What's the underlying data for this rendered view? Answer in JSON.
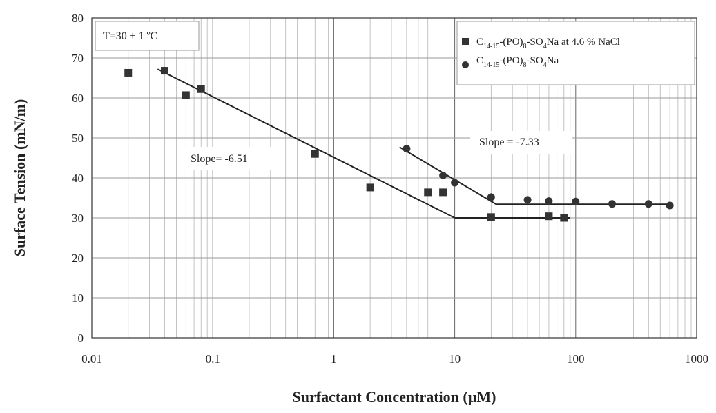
{
  "chart_data": {
    "type": "scatter",
    "x_scale": "log",
    "xlim": [
      0.01,
      1000
    ],
    "ylim": [
      0,
      80
    ],
    "grid": true,
    "xlabel": "Surfactant Concentration (µM)",
    "ylabel": "Surface Tension (mN/m)",
    "x_ticks": [
      "0.01",
      "0.1",
      "1",
      "10",
      "100",
      "1000"
    ],
    "y_ticks": [
      "0",
      "10",
      "20",
      "30",
      "40",
      "50",
      "60",
      "70",
      "80"
    ],
    "legend_position": "top-right",
    "annotations": {
      "temperature": "T=30 ± 1 ºC",
      "slope_left": "Slope= -6.51",
      "slope_right": "Slope = -7.33"
    },
    "series": [
      {
        "legend": {
          "base": "C",
          "sub1": "14-15",
          "mid": "-(PO)",
          "sub2": "8",
          "mid2": "-SO",
          "sub3": "4",
          "tail": "Na at 4.6 % NaCl"
        },
        "marker": "square",
        "points": [
          [
            0.02,
            66.3
          ],
          [
            0.04,
            66.8
          ],
          [
            0.06,
            60.7
          ],
          [
            0.08,
            62.2
          ],
          [
            0.7,
            46.0
          ],
          [
            2,
            37.6
          ],
          [
            6,
            36.4
          ],
          [
            8,
            36.4
          ],
          [
            20,
            30.2
          ],
          [
            60,
            30.4
          ],
          [
            80,
            30.0
          ]
        ],
        "fit_lines": [
          [
            [
              0.035,
              67.2
            ],
            [
              10,
              30.0
            ]
          ],
          [
            [
              10,
              30.0
            ],
            [
              90,
              30.0
            ]
          ]
        ]
      },
      {
        "legend": {
          "base": "C",
          "sub1": "14-15",
          "mid": "-(PO)",
          "sub2": "8",
          "mid2": "-SO",
          "sub3": "4",
          "tail": "Na"
        },
        "marker": "circle",
        "points": [
          [
            4,
            47.3
          ],
          [
            8,
            40.6
          ],
          [
            10,
            38.8
          ],
          [
            20,
            35.2
          ],
          [
            40,
            34.5
          ],
          [
            60,
            34.2
          ],
          [
            100,
            34.1
          ],
          [
            200,
            33.5
          ],
          [
            400,
            33.5
          ],
          [
            600,
            33.1
          ]
        ],
        "fit_lines": [
          [
            [
              3.5,
              47.7
            ],
            [
              22,
              33.4
            ]
          ],
          [
            [
              22,
              33.4
            ],
            [
              600,
              33.4
            ]
          ]
        ]
      }
    ]
  }
}
